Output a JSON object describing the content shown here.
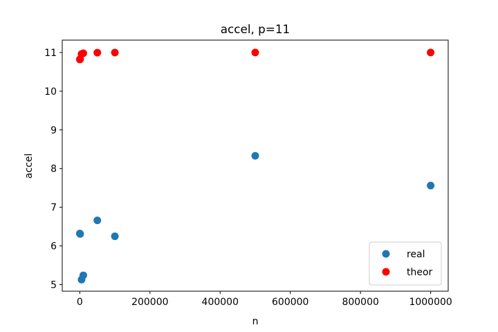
{
  "chart_data": {
    "type": "scatter",
    "title": "accel, p=11",
    "xlabel": "n",
    "ylabel": "accel",
    "xlim": [
      -50000,
      1050000
    ],
    "ylim": [
      4.83,
      11.32
    ],
    "x_ticks": [
      0,
      200000,
      400000,
      600000,
      800000,
      1000000
    ],
    "x_tick_labels": [
      "0",
      "200000",
      "400000",
      "600000",
      "800000",
      "1000000"
    ],
    "y_ticks": [
      5,
      6,
      7,
      8,
      9,
      10,
      11
    ],
    "y_tick_labels": [
      "5",
      "6",
      "7",
      "8",
      "9",
      "10",
      "11"
    ],
    "grid": false,
    "legend_position": "lower right",
    "series": [
      {
        "name": "real",
        "color": "#1f77b4",
        "points": [
          {
            "x": 100,
            "y": 6.32
          },
          {
            "x": 1000,
            "y": 6.31
          },
          {
            "x": 5000,
            "y": 5.13
          },
          {
            "x": 10000,
            "y": 5.24
          },
          {
            "x": 50000,
            "y": 6.66
          },
          {
            "x": 100000,
            "y": 6.25
          },
          {
            "x": 500000,
            "y": 8.33
          },
          {
            "x": 1000000,
            "y": 7.56
          }
        ]
      },
      {
        "name": "theor",
        "color": "#ff0000",
        "points": [
          {
            "x": 100,
            "y": 10.82
          },
          {
            "x": 1000,
            "y": 10.83
          },
          {
            "x": 5000,
            "y": 10.96
          },
          {
            "x": 10000,
            "y": 10.98
          },
          {
            "x": 50000,
            "y": 10.996
          },
          {
            "x": 100000,
            "y": 10.998
          },
          {
            "x": 500000,
            "y": 11.0
          },
          {
            "x": 1000000,
            "y": 11.0
          }
        ]
      }
    ]
  }
}
